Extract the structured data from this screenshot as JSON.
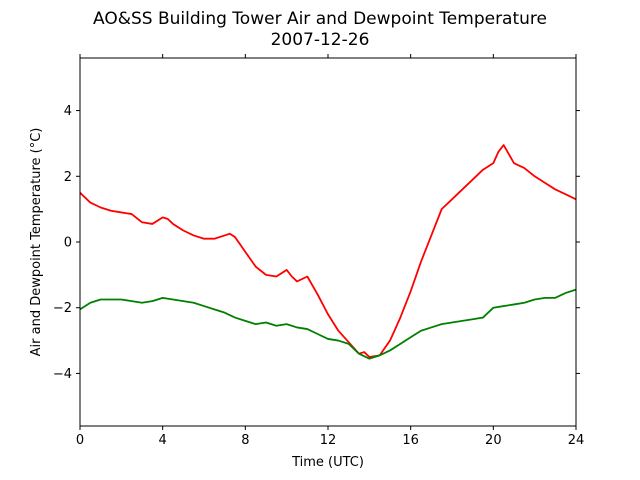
{
  "chart_data": {
    "type": "line",
    "title": "AO&SS Building Tower Air and Dewpoint Temperature",
    "subtitle": "2007-12-26",
    "xlabel": "Time (UTC)",
    "ylabel": "Air and Dewpoint Temperature (°C)",
    "xlim": [
      0,
      24
    ],
    "ylim": [
      -5.6,
      5.6
    ],
    "xticks": [
      0,
      4,
      8,
      12,
      16,
      20,
      24
    ],
    "yticks": [
      -4,
      -2,
      0,
      2,
      4
    ],
    "grid": false,
    "legend": "none",
    "series": [
      {
        "color": "#ff0000",
        "x": [
          0,
          0.5,
          1,
          1.5,
          2,
          2.5,
          3,
          3.5,
          4,
          4.25,
          4.5,
          5,
          5.5,
          6,
          6.5,
          7,
          7.25,
          7.5,
          8,
          8.5,
          9,
          9.5,
          10,
          10.25,
          10.5,
          11,
          11.5,
          12,
          12.5,
          13,
          13.5,
          13.75,
          14,
          14.5,
          15,
          15.5,
          16,
          16.5,
          17,
          17.5,
          18,
          18.5,
          19,
          19.5,
          20,
          20.25,
          20.5,
          21,
          21.5,
          22,
          22.5,
          23,
          23.5,
          24
        ],
        "y": [
          1.5,
          1.2,
          1.05,
          0.95,
          0.9,
          0.85,
          0.6,
          0.55,
          0.75,
          0.7,
          0.55,
          0.35,
          0.2,
          0.1,
          0.1,
          0.2,
          0.25,
          0.15,
          -0.3,
          -0.75,
          -1.0,
          -1.05,
          -0.85,
          -1.05,
          -1.2,
          -1.05,
          -1.6,
          -2.2,
          -2.7,
          -3.05,
          -3.4,
          -3.35,
          -3.5,
          -3.45,
          -3.0,
          -2.3,
          -1.5,
          -0.6,
          0.2,
          1.0,
          1.3,
          1.6,
          1.9,
          2.2,
          2.4,
          2.75,
          2.95,
          2.4,
          2.25,
          2.0,
          1.8,
          1.6,
          1.45,
          1.3
        ]
      },
      {
        "color": "#008000",
        "x": [
          0,
          0.5,
          1,
          1.5,
          2,
          2.5,
          3,
          3.5,
          4,
          4.5,
          5,
          5.5,
          6,
          6.5,
          7,
          7.5,
          8,
          8.5,
          9,
          9.5,
          10,
          10.5,
          11,
          11.5,
          12,
          12.5,
          13,
          13.5,
          14,
          14.5,
          15,
          15.5,
          16,
          16.5,
          17,
          17.5,
          18,
          18.5,
          19,
          19.5,
          20,
          20.5,
          21,
          21.5,
          22,
          22.5,
          23,
          23.5,
          24
        ],
        "y": [
          -2.05,
          -1.85,
          -1.75,
          -1.75,
          -1.75,
          -1.8,
          -1.85,
          -1.8,
          -1.7,
          -1.75,
          -1.8,
          -1.85,
          -1.95,
          -2.05,
          -2.15,
          -2.3,
          -2.4,
          -2.5,
          -2.45,
          -2.55,
          -2.5,
          -2.6,
          -2.65,
          -2.8,
          -2.95,
          -3.0,
          -3.1,
          -3.4,
          -3.55,
          -3.45,
          -3.3,
          -3.1,
          -2.9,
          -2.7,
          -2.6,
          -2.5,
          -2.45,
          -2.4,
          -2.35,
          -2.3,
          -2.0,
          -1.95,
          -1.9,
          -1.85,
          -1.75,
          -1.7,
          -1.7,
          -1.55,
          -1.45
        ]
      }
    ]
  }
}
